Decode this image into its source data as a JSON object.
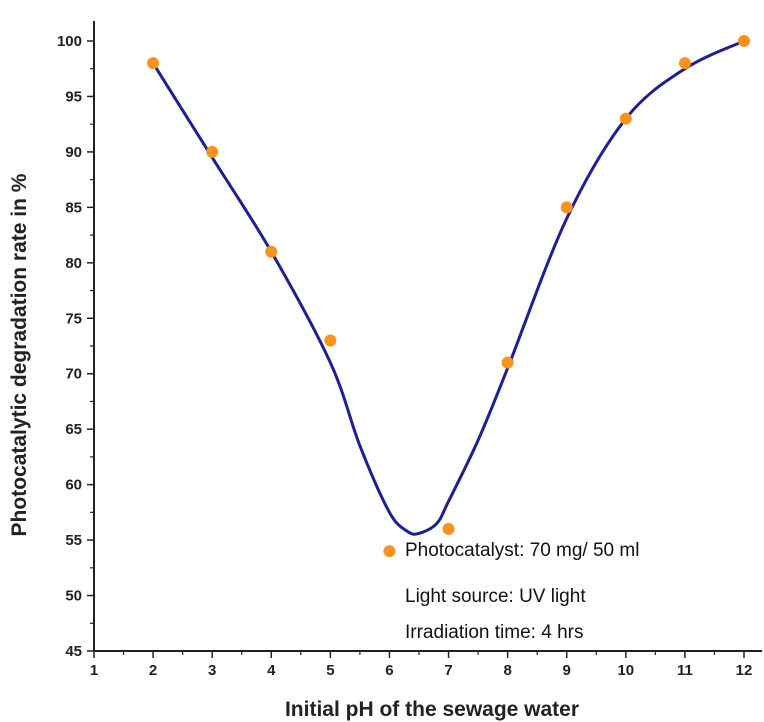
{
  "chart_data": {
    "type": "scatter",
    "title": "",
    "xlabel": "Initial pH of the sewage water",
    "ylabel": "Photocatalytic degradation rate in %",
    "xlim": [
      1,
      12
    ],
    "ylim": [
      45,
      100
    ],
    "xticks": [
      1,
      2,
      3,
      4,
      5,
      6,
      7,
      8,
      9,
      10,
      11,
      12
    ],
    "yticks": [
      45,
      50,
      55,
      60,
      65,
      70,
      75,
      80,
      85,
      90,
      95,
      100
    ],
    "grid": false,
    "points": {
      "x": [
        2,
        3,
        4,
        5,
        6,
        7,
        8,
        9,
        10,
        11,
        12
      ],
      "y": [
        98,
        90,
        81,
        73,
        54,
        56,
        71,
        85,
        93,
        98,
        100
      ]
    },
    "fit_curve": {
      "x": [
        2,
        3,
        4,
        5,
        5.5,
        6,
        6.3,
        6.5,
        6.8,
        7,
        7.5,
        8,
        9,
        10,
        11,
        12
      ],
      "y": [
        98,
        89.5,
        81,
        71,
        63.5,
        57.5,
        55.8,
        55.6,
        56.5,
        58.5,
        64,
        70.5,
        84,
        93,
        97.5,
        100
      ]
    },
    "annotations": [
      "Photocatalyst: 70 mg/ 50 ml",
      "Light source: UV light",
      "Irradiation time: 4 hrs"
    ],
    "colors": {
      "points": "#f7931e",
      "curve": "#1f1f8f",
      "axis": "#222222"
    }
  }
}
